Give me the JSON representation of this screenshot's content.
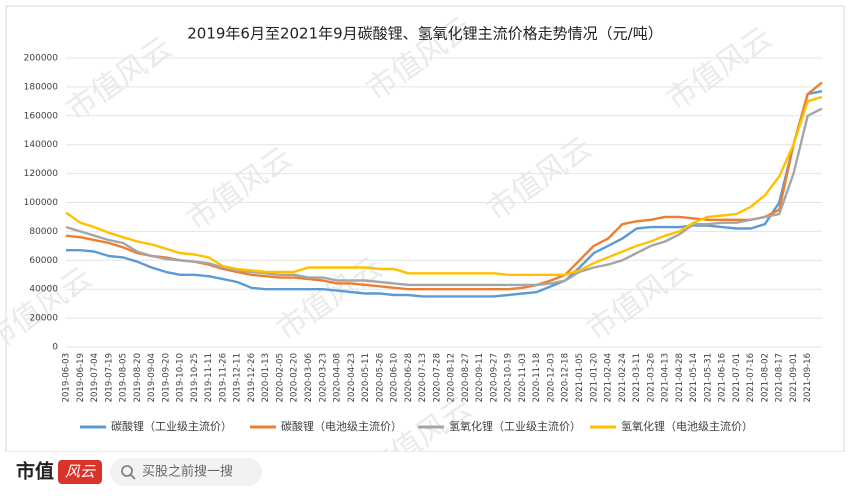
{
  "chart_data": {
    "type": "line",
    "title": "2019年6月至2021年9月碳酸锂、氢氧化锂主流价格走势情况（元/吨）",
    "categories": [
      "2019-06-03",
      "2019-06-19",
      "2019-07-04",
      "2019-07-19",
      "2019-08-05",
      "2019-08-20",
      "2019-09-04",
      "2019-09-20",
      "2019-10-10",
      "2019-10-25",
      "2019-11-11",
      "2019-11-26",
      "2019-12-11",
      "2019-12-26",
      "2020-01-13",
      "2020-02-05",
      "2020-02-20",
      "2020-03-06",
      "2020-03-23",
      "2020-04-08",
      "2020-04-23",
      "2020-05-11",
      "2020-05-26",
      "2020-06-10",
      "2020-06-28",
      "2020-07-13",
      "2020-07-28",
      "2020-08-12",
      "2020-08-27",
      "2020-09-11",
      "2020-09-27",
      "2020-10-19",
      "2020-11-03",
      "2020-11-18",
      "2020-12-03",
      "2020-12-18",
      "2021-01-05",
      "2021-01-20",
      "2021-02-04",
      "2021-02-24",
      "2021-03-11",
      "2021-03-26",
      "2021-04-13",
      "2021-04-28",
      "2021-05-14",
      "2021-05-31",
      "2021-06-16",
      "2021-07-01",
      "2021-07-16",
      "2021-08-02",
      "2021-08-17",
      "2021-09-01",
      "2021-09-16",
      null
    ],
    "series": [
      {
        "name": "碳酸锂（工业级主流价）",
        "color": "#5b9bd5",
        "values": [
          67000,
          67000,
          66000,
          63000,
          62000,
          59000,
          55000,
          52000,
          50000,
          50000,
          49000,
          47000,
          45000,
          41000,
          40000,
          40000,
          40000,
          40000,
          40000,
          39000,
          38000,
          37000,
          37000,
          36000,
          36000,
          35000,
          35000,
          35000,
          35000,
          35000,
          35000,
          36000,
          37000,
          38000,
          42000,
          46000,
          55000,
          65000,
          70000,
          75000,
          82000,
          83000,
          83000,
          83000,
          84000,
          84000,
          83000,
          82000,
          82000,
          85000,
          100000,
          140000,
          175000,
          177000
        ]
      },
      {
        "name": "碳酸锂（电池级主流价）",
        "color": "#ed7d31",
        "values": [
          77000,
          76000,
          74000,
          72000,
          69000,
          65000,
          63000,
          62000,
          60000,
          59000,
          57000,
          54000,
          52000,
          50000,
          49000,
          48000,
          48000,
          47000,
          46000,
          44000,
          44000,
          43000,
          42000,
          41000,
          40000,
          40000,
          40000,
          40000,
          40000,
          40000,
          40000,
          40000,
          41000,
          43000,
          46000,
          50000,
          60000,
          70000,
          75000,
          85000,
          87000,
          88000,
          90000,
          90000,
          89000,
          88000,
          88000,
          88000,
          88000,
          90000,
          95000,
          140000,
          175000,
          183000
        ]
      },
      {
        "name": "氢氧化锂（工业级主流价）",
        "color": "#a5a5a5",
        "values": [
          83000,
          80000,
          77000,
          74000,
          72000,
          66000,
          63000,
          61000,
          60000,
          59000,
          58000,
          55000,
          53000,
          52000,
          51000,
          50000,
          50000,
          48000,
          48000,
          46000,
          46000,
          46000,
          45000,
          44000,
          43000,
          43000,
          43000,
          43000,
          43000,
          43000,
          43000,
          43000,
          43000,
          43000,
          44000,
          46000,
          52000,
          55000,
          57000,
          60000,
          65000,
          70000,
          73000,
          78000,
          85000,
          85000,
          86000,
          86000,
          88000,
          90000,
          92000,
          120000,
          160000,
          165000
        ]
      },
      {
        "name": "氢氧化锂（电池级主流价）",
        "color": "#ffc000",
        "values": [
          93000,
          86000,
          83000,
          79000,
          76000,
          73000,
          71000,
          68000,
          65000,
          64000,
          62000,
          56000,
          54000,
          53000,
          52000,
          52000,
          52000,
          55000,
          55000,
          55000,
          55000,
          55000,
          54000,
          54000,
          51000,
          51000,
          51000,
          51000,
          51000,
          51000,
          51000,
          50000,
          50000,
          50000,
          50000,
          50000,
          53000,
          58000,
          62000,
          66000,
          70000,
          73000,
          77000,
          80000,
          86000,
          90000,
          91000,
          92000,
          97000,
          105000,
          118000,
          140000,
          170000,
          173000
        ]
      }
    ],
    "ylim": [
      0,
      200000
    ],
    "yticks": [
      0,
      20000,
      40000,
      60000,
      80000,
      100000,
      120000,
      140000,
      160000,
      180000,
      200000
    ],
    "grid": true,
    "legend": "bottom",
    "watermark": "市值风云"
  },
  "footer": {
    "brand": "市值",
    "brand_mark": "风云",
    "search": "买股之前搜一搜"
  }
}
